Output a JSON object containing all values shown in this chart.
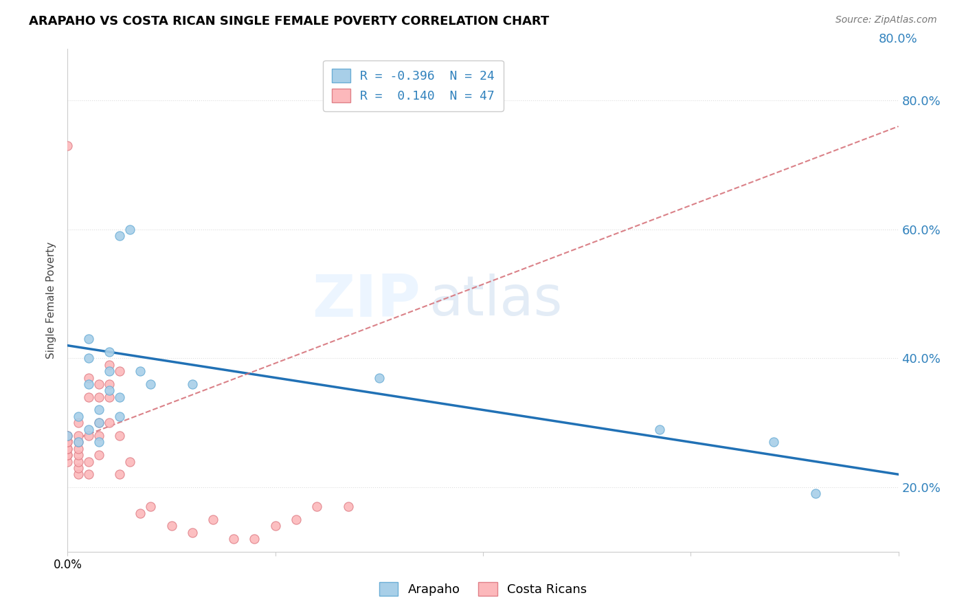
{
  "title": "ARAPAHO VS COSTA RICAN SINGLE FEMALE POVERTY CORRELATION CHART",
  "source": "Source: ZipAtlas.com",
  "ylabel": "Single Female Poverty",
  "xlim": [
    0.0,
    0.8
  ],
  "ylim": [
    0.1,
    0.88
  ],
  "ytick_positions": [
    0.2,
    0.4,
    0.6,
    0.8
  ],
  "ytick_labels": [
    "20.0%",
    "40.0%",
    "60.0%",
    "80.0%"
  ],
  "arapaho_scatter_color": "#a8cfe8",
  "arapaho_edge_color": "#6baed6",
  "costa_scatter_color": "#fcb8bb",
  "costa_edge_color": "#e08088",
  "arapaho_line_color": "#2171b5",
  "costa_line_color": "#d46b73",
  "legend1_r": "-0.396",
  "legend1_n": "24",
  "legend2_r": "0.140",
  "legend2_n": "47",
  "arapaho_x": [
    0.0,
    0.01,
    0.01,
    0.02,
    0.02,
    0.02,
    0.02,
    0.03,
    0.03,
    0.03,
    0.04,
    0.04,
    0.04,
    0.05,
    0.05,
    0.06,
    0.07,
    0.08,
    0.12,
    0.3,
    0.57,
    0.68,
    0.72,
    0.05
  ],
  "arapaho_y": [
    0.28,
    0.27,
    0.31,
    0.29,
    0.36,
    0.4,
    0.43,
    0.27,
    0.3,
    0.32,
    0.35,
    0.38,
    0.41,
    0.31,
    0.59,
    0.6,
    0.38,
    0.36,
    0.36,
    0.37,
    0.29,
    0.27,
    0.19,
    0.34
  ],
  "costa_x": [
    0.0,
    0.0,
    0.0,
    0.0,
    0.0,
    0.0,
    0.0,
    0.0,
    0.0,
    0.0,
    0.01,
    0.01,
    0.01,
    0.01,
    0.01,
    0.01,
    0.01,
    0.01,
    0.02,
    0.02,
    0.02,
    0.02,
    0.02,
    0.03,
    0.03,
    0.03,
    0.03,
    0.03,
    0.04,
    0.04,
    0.04,
    0.04,
    0.05,
    0.05,
    0.05,
    0.06,
    0.07,
    0.08,
    0.1,
    0.12,
    0.14,
    0.16,
    0.18,
    0.2,
    0.22,
    0.24,
    0.27
  ],
  "costa_y": [
    0.24,
    0.25,
    0.25,
    0.26,
    0.26,
    0.27,
    0.27,
    0.28,
    0.28,
    0.73,
    0.22,
    0.23,
    0.24,
    0.25,
    0.26,
    0.27,
    0.28,
    0.3,
    0.22,
    0.24,
    0.28,
    0.34,
    0.37,
    0.25,
    0.28,
    0.3,
    0.34,
    0.36,
    0.3,
    0.34,
    0.36,
    0.39,
    0.22,
    0.28,
    0.38,
    0.24,
    0.16,
    0.17,
    0.14,
    0.13,
    0.15,
    0.12,
    0.12,
    0.14,
    0.15,
    0.17,
    0.17
  ],
  "watermark_zip": "ZIP",
  "watermark_atlas": "atlas",
  "bg_color": "white",
  "grid_color": "#dddddd",
  "spine_color": "#cccccc"
}
